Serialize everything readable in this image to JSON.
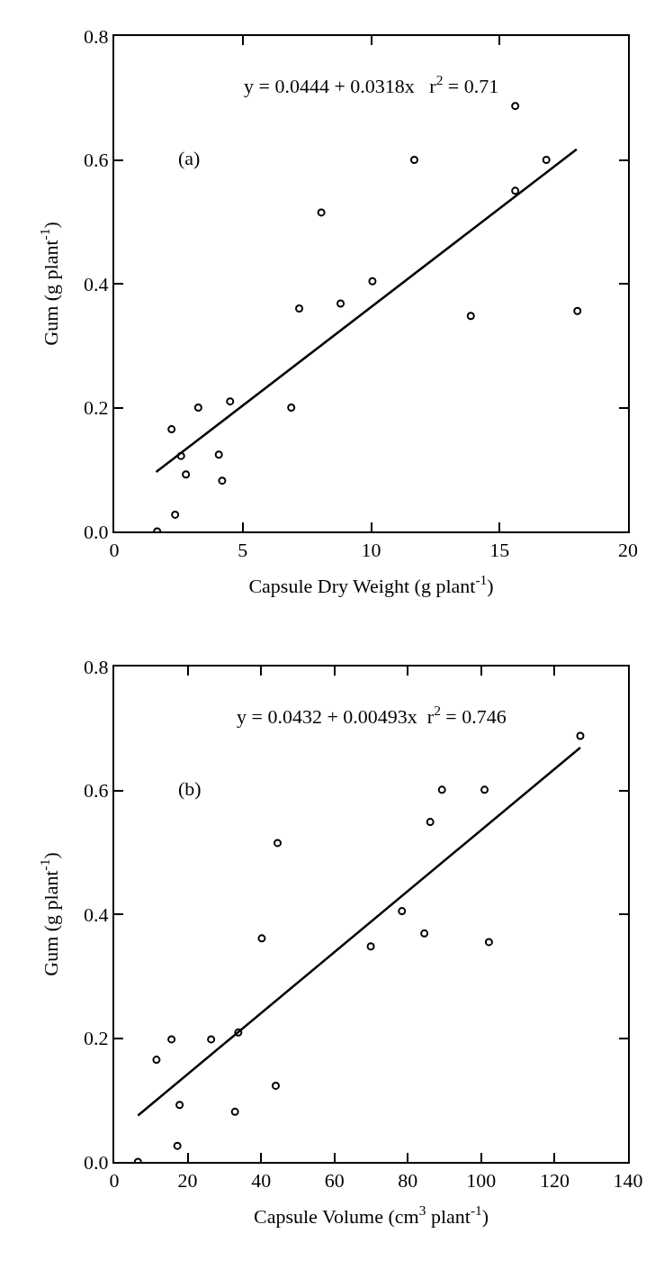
{
  "chart_data": [
    {
      "type": "scatter",
      "xlabel": "Capsule Dry Weight (g plant$^{-1}$)",
      "ylabel": "Gum (g plant$^{-1}$)",
      "annotations": [
        "y = 0.0444 + 0.0318x   r$^{2}$ = 0.71",
        "(a)"
      ],
      "xlim": [
        0,
        20
      ],
      "xticks": [
        0,
        5,
        10,
        15,
        20
      ],
      "ylim": [
        0,
        0.8
      ],
      "yticks": [
        {
          "value": 0,
          "label": "0.0"
        },
        0.2,
        0.4,
        0.6,
        0.8
      ],
      "grid": false,
      "series": [
        {
          "marker": "circle",
          "color": "#000000",
          "x": [
            1.67,
            2.23,
            2.37,
            2.6,
            2.79,
            3.27,
            4.07,
            4.2,
            4.51,
            6.89,
            7.2,
            8.06,
            8.81,
            10.05,
            11.68,
            13.88,
            15.61,
            15.61,
            16.82,
            18.03
          ],
          "values": [
            0,
            0.165,
            0.027,
            0.122,
            0.092,
            0.2,
            0.124,
            0.082,
            0.21,
            0.2,
            0.36,
            0.515,
            0.368,
            0.404,
            0.6,
            0.348,
            0.687,
            0.55,
            0.6,
            0.356
          ]
        },
        {
          "type": "line",
          "marker": "none",
          "color": "#000000",
          "x": [
            1.63,
            18.0
          ],
          "values": [
            0.096,
            0.617
          ]
        }
      ]
    },
    {
      "type": "scatter",
      "xlabel": "Capsule Volume (cm$^{3}$ plant$^{-1}$)",
      "ylabel": "Gum (g plant$^{-1}$)",
      "annotations": [
        "y = 0.0432 + 0.00493x  r$^{2}$ = 0.746",
        "(b)"
      ],
      "xlim": [
        0,
        140
      ],
      "xticks": [
        0,
        20,
        40,
        60,
        80,
        100,
        120,
        140
      ],
      "ylim": [
        0,
        0.8
      ],
      "yticks": [
        {
          "value": 0,
          "label": "0.0"
        },
        0.2,
        0.4,
        0.6,
        0.8
      ],
      "grid": false,
      "series": [
        {
          "marker": "circle",
          "color": "#000000",
          "x": [
            6.45,
            11.5,
            15.6,
            17.2,
            17.8,
            26.4,
            32.9,
            33.8,
            40.2,
            44.0,
            44.5,
            69.9,
            78.4,
            84.5,
            86.1,
            89.3,
            100.9,
            102.1,
            127.0
          ],
          "values": [
            0,
            0.165,
            0.198,
            0.026,
            0.092,
            0.198,
            0.081,
            0.209,
            0.361,
            0.123,
            0.515,
            0.348,
            0.405,
            0.369,
            0.549,
            0.601,
            0.601,
            0.355,
            0.688
          ]
        },
        {
          "type": "line",
          "marker": "none",
          "color": "#000000",
          "x": [
            6.45,
            127.0
          ],
          "values": [
            0.075,
            0.669
          ]
        }
      ]
    }
  ]
}
